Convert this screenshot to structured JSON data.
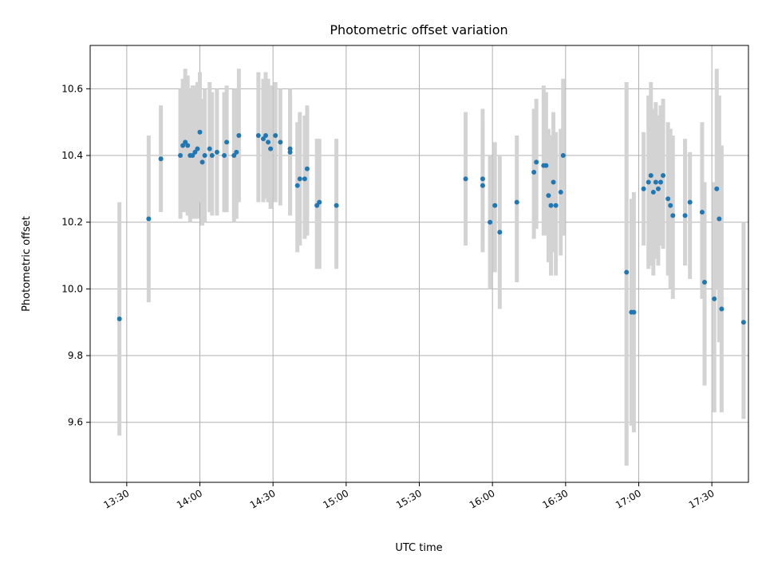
{
  "chart_data": {
    "type": "scatter",
    "title": "Photometric offset variation",
    "xlabel": "UTC time",
    "ylabel": "Photometric offset",
    "x_tick_labels": [
      "13:30",
      "14:00",
      "14:30",
      "15:00",
      "15:30",
      "16:00",
      "16:30",
      "17:00",
      "17:30"
    ],
    "y_ticks": [
      9.6,
      9.8,
      10.0,
      10.2,
      10.4,
      10.6
    ],
    "y_tick_labels": [
      "9.6",
      "9.8",
      "10.0",
      "10.2",
      "10.4",
      "10.6"
    ],
    "xlim": [
      "13:15",
      "17:45"
    ],
    "ylim": [
      9.42,
      10.73
    ],
    "grid": true,
    "colors": {
      "point": "#1f77b4",
      "errorbar": "#d3d3d3",
      "grid": "#b0b0b0"
    },
    "series": [
      {
        "x": [
          "13:27",
          "13:39",
          "13:44",
          "13:52",
          "13:53",
          "13:54",
          "13:55",
          "13:56",
          "13:57",
          "13:58",
          "13:59",
          "14:00",
          "14:01",
          "14:02",
          "14:04",
          "14:05",
          "14:07",
          "14:10",
          "14:11",
          "14:14",
          "14:15",
          "14:16",
          "14:24",
          "14:26",
          "14:27",
          "14:28",
          "14:29",
          "14:31",
          "14:33",
          "14:37",
          "14:37",
          "14:40",
          "14:41",
          "14:43",
          "14:44",
          "14:48",
          "14:49",
          "14:56",
          "15:49",
          "15:56",
          "15:56",
          "15:59",
          "16:01",
          "16:03",
          "16:10",
          "16:17",
          "16:18",
          "16:21",
          "16:22",
          "16:23",
          "16:24",
          "16:25",
          "16:26",
          "16:28",
          "16:29",
          "16:55",
          "16:57",
          "16:58",
          "17:02",
          "17:04",
          "17:05",
          "17:06",
          "17:07",
          "17:08",
          "17:09",
          "17:10",
          "17:12",
          "17:13",
          "17:14",
          "17:19",
          "17:21",
          "17:26",
          "17:27",
          "17:31",
          "17:32",
          "17:33",
          "17:34",
          "17:43"
        ],
        "y": [
          9.91,
          10.21,
          10.39,
          10.4,
          10.43,
          10.44,
          10.43,
          10.4,
          10.4,
          10.41,
          10.42,
          10.47,
          10.38,
          10.4,
          10.42,
          10.4,
          10.41,
          10.4,
          10.44,
          10.4,
          10.41,
          10.46,
          10.46,
          10.45,
          10.46,
          10.44,
          10.42,
          10.46,
          10.44,
          10.42,
          10.41,
          10.31,
          10.33,
          10.33,
          10.36,
          10.25,
          10.26,
          10.25,
          10.33,
          10.31,
          10.33,
          10.2,
          10.25,
          10.17,
          10.26,
          10.35,
          10.38,
          10.37,
          10.37,
          10.28,
          10.25,
          10.32,
          10.25,
          10.29,
          10.4,
          10.05,
          9.93,
          9.93,
          10.3,
          10.32,
          10.34,
          10.29,
          10.32,
          10.3,
          10.32,
          10.34,
          10.27,
          10.25,
          10.22,
          10.22,
          10.26,
          10.23,
          10.02,
          9.97,
          10.3,
          10.21,
          9.94,
          9.9
        ],
        "y_low": [
          9.56,
          9.96,
          10.23,
          10.21,
          10.23,
          10.23,
          10.22,
          10.2,
          10.21,
          10.21,
          10.21,
          10.26,
          10.19,
          10.2,
          10.23,
          10.22,
          10.22,
          10.23,
          10.23,
          10.2,
          10.21,
          10.26,
          10.26,
          10.26,
          10.27,
          10.26,
          10.24,
          10.26,
          10.25,
          10.23,
          10.22,
          10.11,
          10.13,
          10.15,
          10.16,
          10.06,
          10.06,
          10.06,
          10.13,
          10.13,
          10.11,
          10.0,
          10.05,
          9.94,
          10.02,
          10.15,
          10.18,
          10.16,
          10.16,
          10.08,
          10.04,
          10.11,
          10.04,
          10.1,
          10.16,
          9.47,
          9.59,
          9.57,
          10.13,
          10.06,
          10.07,
          10.04,
          10.09,
          10.07,
          10.13,
          10.12,
          10.04,
          10.0,
          9.97,
          10.07,
          10.03,
          9.97,
          9.71,
          9.63,
          10.0,
          9.84,
          9.63,
          9.61
        ],
        "y_high": [
          10.26,
          10.46,
          10.55,
          10.6,
          10.63,
          10.66,
          10.64,
          10.6,
          10.61,
          10.61,
          10.62,
          10.65,
          10.57,
          10.6,
          10.62,
          10.59,
          10.6,
          10.59,
          10.61,
          10.6,
          10.6,
          10.66,
          10.65,
          10.63,
          10.65,
          10.63,
          10.61,
          10.62,
          10.6,
          10.6,
          10.58,
          10.5,
          10.53,
          10.52,
          10.55,
          10.45,
          10.45,
          10.45,
          10.53,
          10.49,
          10.54,
          10.4,
          10.44,
          10.4,
          10.46,
          10.54,
          10.57,
          10.61,
          10.59,
          10.48,
          10.46,
          10.53,
          10.47,
          10.48,
          10.63,
          10.62,
          10.27,
          10.29,
          10.47,
          10.58,
          10.62,
          10.54,
          10.56,
          10.52,
          10.55,
          10.57,
          10.5,
          10.48,
          10.46,
          10.45,
          10.41,
          10.5,
          10.32,
          10.32,
          10.66,
          10.58,
          10.43,
          10.2
        ]
      }
    ]
  }
}
